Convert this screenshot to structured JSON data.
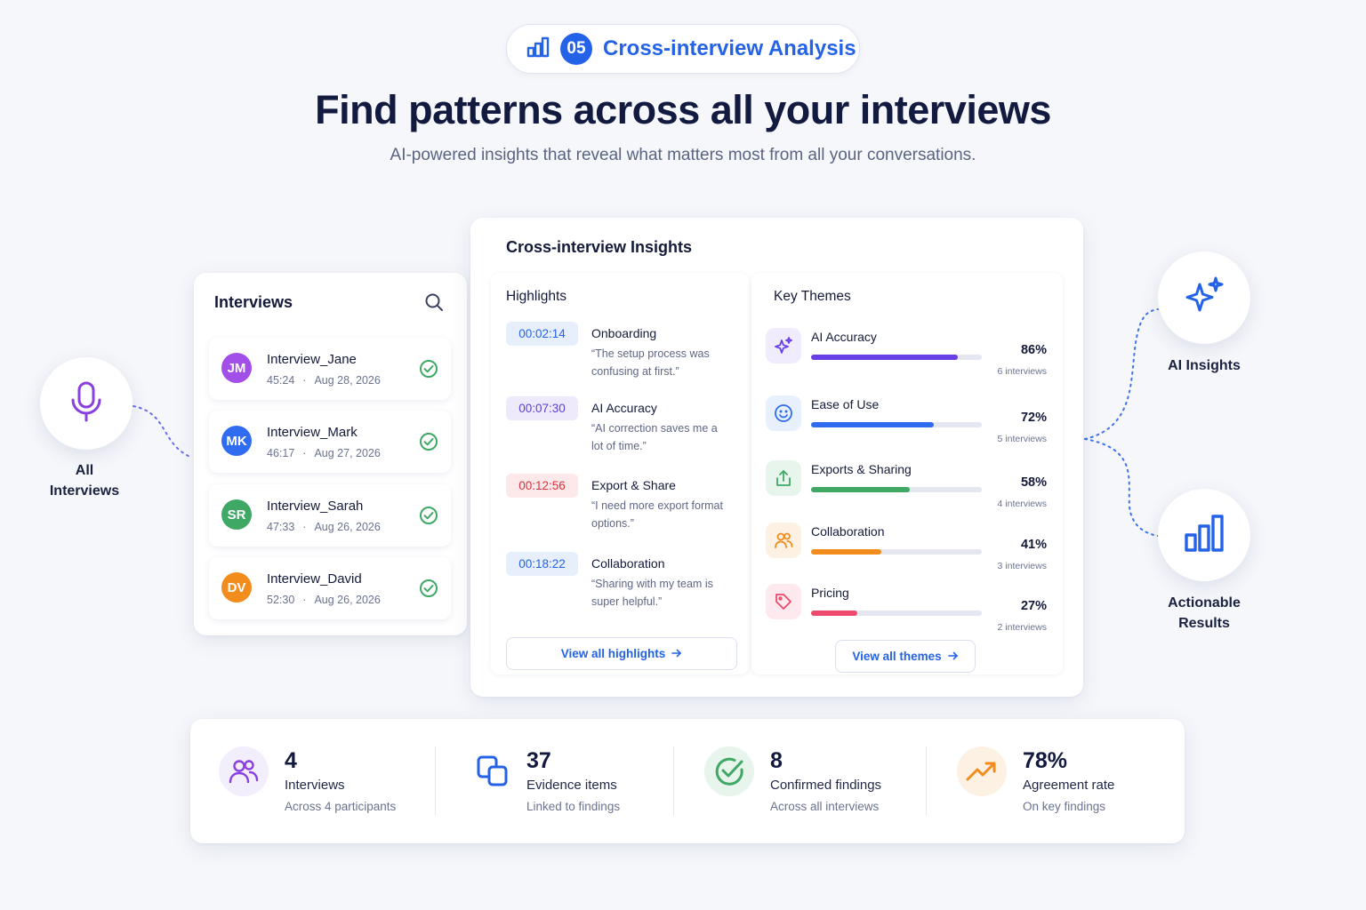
{
  "badge": {
    "number": "05",
    "label": "Cross-interview Analysis"
  },
  "headline": "Find patterns across all your interviews",
  "subline": "AI-powered insights that reveal what matters most from all your conversations.",
  "left_node": {
    "label_line1": "All",
    "label_line2": "Interviews"
  },
  "right_nodes": [
    {
      "label_line1": "AI Insights",
      "label_line2": ""
    },
    {
      "label_line1": "Actionable",
      "label_line2": "Results"
    }
  ],
  "interviews": {
    "title": "Interviews",
    "items": [
      {
        "initials": "JM",
        "name": "Interview_Jane",
        "duration": "45:24",
        "sep": "·",
        "date": "Aug 28, 2026",
        "color": "#a24ee8"
      },
      {
        "initials": "MK",
        "name": "Interview_Mark",
        "duration": "46:17",
        "sep": "·",
        "date": "Aug 27, 2026",
        "color": "#2f6cf0"
      },
      {
        "initials": "SR",
        "name": "Interview_Sarah",
        "duration": "47:33",
        "sep": "·",
        "date": "Aug 26, 2026",
        "color": "#3fa865"
      },
      {
        "initials": "DV",
        "name": "Interview_David",
        "duration": "52:30",
        "sep": "·",
        "date": "Aug 26, 2026",
        "color": "#f28c1c"
      }
    ]
  },
  "insights": {
    "title": "Cross-interview Insights",
    "highlights_title": "Highlights",
    "highlights": [
      {
        "time": "00:02:14",
        "topic": "Onboarding",
        "quote": "“The setup process was confusing at first.”",
        "chip_bg": "#e7effd",
        "chip_fg": "#2462e8"
      },
      {
        "time": "00:07:30",
        "topic": "AI Accuracy",
        "quote": "“AI correction saves me a lot of time.”",
        "chip_bg": "#eeeafb",
        "chip_fg": "#5b3fd0"
      },
      {
        "time": "00:12:56",
        "topic": "Export & Share",
        "quote": "“I need more export format options.”",
        "chip_bg": "#fde9ea",
        "chip_fg": "#d9303d"
      },
      {
        "time": "00:18:22",
        "topic": "Collaboration",
        "quote": "“Sharing with my team is super helpful.”",
        "chip_bg": "#e7effd",
        "chip_fg": "#2462e8"
      }
    ],
    "view_highlights": "View all highlights",
    "themes_title": "Key Themes",
    "themes": [
      {
        "name": "AI Accuracy",
        "percent": "86%",
        "value": 0.86,
        "count": "6 interviews",
        "color": "#6a3fe6",
        "icon": "sparkle-icon",
        "icon_bg": "#f0ecfd"
      },
      {
        "name": "Ease of Use",
        "percent": "72%",
        "value": 0.72,
        "count": "5 interviews",
        "color": "#2f6cf0",
        "icon": "smile-icon",
        "icon_bg": "#e9f0fd"
      },
      {
        "name": "Exports & Sharing",
        "percent": "58%",
        "value": 0.58,
        "count": "4 interviews",
        "color": "#3fa865",
        "icon": "share-icon",
        "icon_bg": "#e8f5ec"
      },
      {
        "name": "Collaboration",
        "percent": "41%",
        "value": 0.41,
        "count": "3 interviews",
        "color": "#f28c1c",
        "icon": "people-icon",
        "icon_bg": "#fdf1e4"
      },
      {
        "name": "Pricing",
        "percent": "27%",
        "value": 0.27,
        "count": "2 interviews",
        "color": "#ee4a6d",
        "icon": "tag-icon",
        "icon_bg": "#fde9ee"
      }
    ],
    "view_themes": "View all themes"
  },
  "stats": [
    {
      "value": "4",
      "label": "Interviews",
      "sub": "Across 4 participants",
      "icon": "users-icon"
    },
    {
      "value": "37",
      "label": "Evidence items",
      "sub": "Linked to findings",
      "icon": "copy-icon"
    },
    {
      "value": "8",
      "label": "Confirmed findings",
      "sub": "Across all interviews",
      "icon": "check-circle-icon"
    },
    {
      "value": "78%",
      "label": "Agreement rate",
      "sub": "On key findings",
      "icon": "trend-up-icon"
    }
  ]
}
